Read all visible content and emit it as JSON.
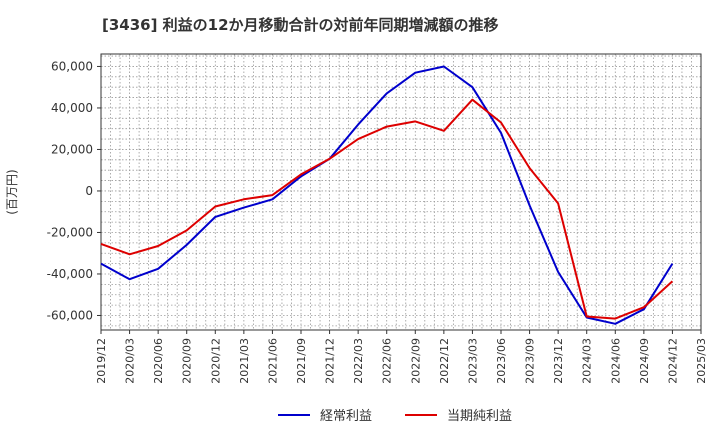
{
  "chart_data": {
    "type": "line",
    "title": "[3436]  利益の12か月移動合計の対前年同期増減額の推移",
    "ylabel": "(百万円)",
    "xlabel": "",
    "ylim": [
      -67000,
      66000
    ],
    "yticks": [
      60000,
      40000,
      20000,
      0,
      -20000,
      -40000,
      -60000
    ],
    "ytick_labels": [
      "60,000",
      "40,000",
      "20,000",
      "0",
      "-20,000",
      "-40,000",
      "-60,000"
    ],
    "x": [
      "2019/12",
      "2020/03",
      "2020/06",
      "2020/09",
      "2020/12",
      "2021/03",
      "2021/06",
      "2021/09",
      "2021/12",
      "2022/03",
      "2022/06",
      "2022/09",
      "2022/12",
      "2023/03",
      "2023/06",
      "2023/09",
      "2023/12",
      "2024/03",
      "2024/06",
      "2024/09",
      "2024/12",
      "2025/03"
    ],
    "grid": true,
    "legend_position": "bottom",
    "series": [
      {
        "name": "経常利益",
        "color": "#0000cc",
        "values": [
          -35000,
          -42500,
          -37500,
          -26000,
          -12500,
          -8000,
          -4000,
          7000,
          15500,
          32000,
          47000,
          57000,
          60000,
          50000,
          28000,
          -7000,
          -39000,
          -61000,
          -64000,
          -57000,
          -35000,
          null
        ]
      },
      {
        "name": "当期純利益",
        "color": "#dd0000",
        "values": [
          -25500,
          -30500,
          -26500,
          -19000,
          -7500,
          -4000,
          -2000,
          8000,
          15500,
          25000,
          31000,
          33500,
          29000,
          44000,
          33000,
          11000,
          -6000,
          -60500,
          -61500,
          -56000,
          -43500,
          null
        ]
      }
    ]
  }
}
